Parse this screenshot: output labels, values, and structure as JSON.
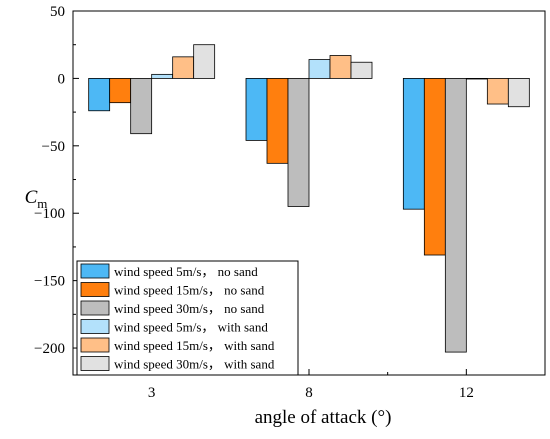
{
  "chart_data": {
    "type": "bar",
    "title": "",
    "xlabel": "angle of attack (°)",
    "ylabel": {
      "main": "C",
      "sub": "m"
    },
    "categories": [
      "3",
      "8",
      "12"
    ],
    "ylim": [
      -220,
      50
    ],
    "yticks": [
      50,
      0,
      -50,
      -100,
      -150,
      -200
    ],
    "grid": false,
    "legend_position": "bottom-left",
    "series": [
      {
        "name": "wind speed 5m/s，  no sand",
        "color": "#4db8f5",
        "values": [
          -24,
          -46,
          -97
        ]
      },
      {
        "name": "wind speed 15m/s，  no sand",
        "color": "#ff7f0e",
        "values": [
          -18,
          -63,
          -131
        ]
      },
      {
        "name": "wind speed 30m/s，  no sand",
        "color": "#bdbdbd",
        "values": [
          -41,
          -95,
          -203
        ]
      },
      {
        "name": "wind speed 5m/s，  with sand",
        "color": "#b3e1fb",
        "values": [
          3,
          14,
          0
        ]
      },
      {
        "name": "wind speed 15m/s，  with sand",
        "color": "#ffbf87",
        "values": [
          16,
          17,
          -19
        ]
      },
      {
        "name": "wind speed 30m/s，  with sand",
        "color": "#e1e1e1",
        "values": [
          25,
          12,
          -21
        ]
      }
    ]
  }
}
